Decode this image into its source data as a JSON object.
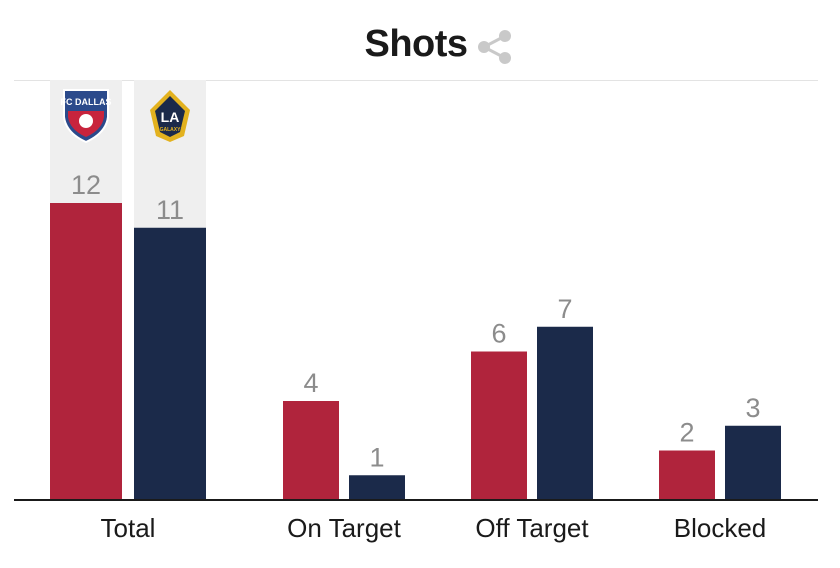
{
  "header": {
    "title": "Shots",
    "share_icon": "share-icon"
  },
  "teams": [
    {
      "logo_icon": "fc-dallas-logo-icon",
      "logo_text": "FC DALLAS",
      "color": "#b0243c"
    },
    {
      "logo_icon": "la-galaxy-logo-icon",
      "logo_text": "LA",
      "logo_subtext": "GALAXY",
      "color": "#1b2a4a"
    }
  ],
  "colors": {
    "highlight_bg": "#efefef",
    "axis": "#1a1a1a",
    "value_label": "#8c8c8c"
  },
  "chart_data": {
    "type": "bar",
    "categories": [
      "Total",
      "On Target",
      "Off Target",
      "Blocked"
    ],
    "series": [
      {
        "values": [
          12,
          4,
          6,
          2
        ]
      },
      {
        "values": [
          11,
          1,
          7,
          3
        ]
      }
    ],
    "ylim": [
      0,
      12
    ],
    "grid": false
  }
}
